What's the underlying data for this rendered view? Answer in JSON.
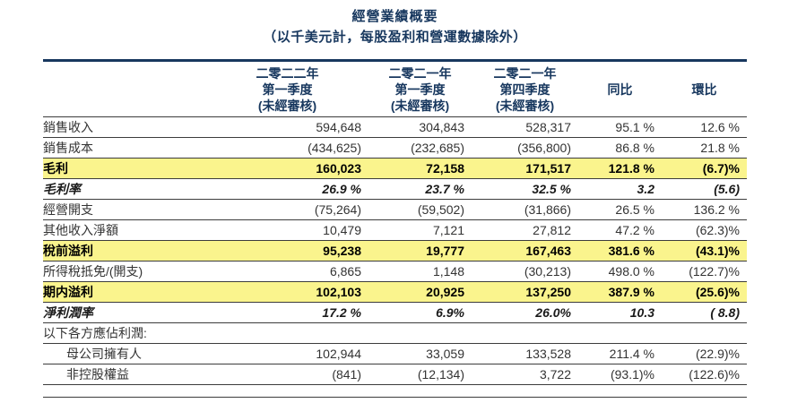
{
  "title": "經營業績概要",
  "subtitle": "（以千美元計，每股盈利和營運數據除外）",
  "colors": {
    "heading_navy": "#17375E",
    "highlight_yellow": "#FAF48D",
    "rule_dark": "#3c3c3c",
    "body_text": "#333333"
  },
  "table": {
    "headers": {
      "col1": {
        "line1": "二零二二年",
        "line2": "第一季度",
        "line3": "(未經審核)"
      },
      "col2": {
        "line1": "二零二一年",
        "line2": "第一季度",
        "line3": "(未經審核)"
      },
      "col3": {
        "line1": "二零二一年",
        "line2": "第四季度",
        "line3": "(未經審核)"
      },
      "col4": {
        "label": "同比"
      },
      "col5": {
        "label": "環比"
      }
    },
    "rows": [
      {
        "label": "銷售收入",
        "values": [
          "594,648",
          "304,843",
          "528,317",
          "95.1 %",
          "12.6 %"
        ]
      },
      {
        "label": "銷售成本",
        "values": [
          "(434,625)",
          "(232,685)",
          "(356,800)",
          "86.8 %",
          "21.8 %"
        ]
      },
      {
        "label": "毛利",
        "values": [
          "160,023",
          "72,158",
          "171,517",
          "121.8 %",
          "(6.7)%"
        ]
      },
      {
        "label": "毛利率",
        "values": [
          "26.9 %",
          "23.7 %",
          "32.5 %",
          "3.2",
          "(5.6)"
        ]
      },
      {
        "label": "經營開支",
        "values": [
          "(75,264)",
          "(59,502)",
          "(31,866)",
          "26.5 %",
          "136.2 %"
        ]
      },
      {
        "label": "其他收入淨額",
        "values": [
          "10,479",
          "7,121",
          "27,812",
          "47.2 %",
          "(62.3)%"
        ]
      },
      {
        "label": "稅前溢利",
        "values": [
          "95,238",
          "19,777",
          "167,463",
          "381.6 %",
          "(43.1)%"
        ]
      },
      {
        "label": "所得稅抵免/(開支)",
        "values": [
          "6,865",
          "1,148",
          "(30,213)",
          "498.0 %",
          "(122.7)%"
        ]
      },
      {
        "label": "期内溢利",
        "values": [
          "102,103",
          "20,925",
          "137,250",
          "387.9 %",
          "(25.6)%"
        ]
      },
      {
        "label": "淨利潤率",
        "values": [
          "17.2 %",
          "6.9%",
          "26.0%",
          "10.3",
          "( 8.8)"
        ]
      },
      {
        "label": "以下各方應佔利潤:"
      },
      {
        "label": "母公司擁有人",
        "values": [
          "102,944",
          "33,059",
          "133,528",
          "211.4 %",
          "(22.9)%"
        ]
      },
      {
        "label": "非控股權益",
        "values": [
          "(841)",
          "(12,134)",
          "3,722",
          "(93.1)%",
          "(122.6)%"
        ]
      }
    ]
  }
}
